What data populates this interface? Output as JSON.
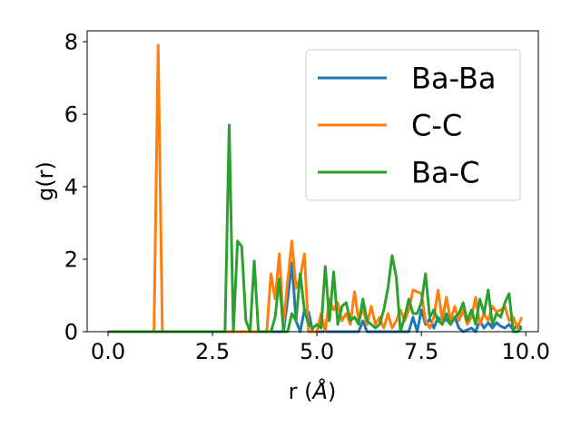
{
  "chart_data": {
    "type": "line",
    "xlabel": "r (Å)",
    "xlabel_parts": [
      "r (",
      "Å",
      ")"
    ],
    "ylabel": "g(r)",
    "xlim": [
      -0.5,
      10.3
    ],
    "ylim": [
      0,
      8.3
    ],
    "xticks": [
      0,
      2.5,
      5,
      7.5,
      10
    ],
    "xtick_labels": [
      "0.0",
      "2.5",
      "5.0",
      "7.5",
      "10.0"
    ],
    "yticks": [
      0,
      2,
      4,
      6,
      8
    ],
    "ytick_labels": [
      "0",
      "2",
      "4",
      "6",
      "8"
    ],
    "grid": false,
    "legend_position": "upper-right",
    "series": [
      {
        "name": "Ba-Ba",
        "color": "#1f77b4",
        "points": [
          [
            0,
            0
          ],
          [
            4.2,
            0
          ],
          [
            4.3,
            0.9
          ],
          [
            4.4,
            1.9
          ],
          [
            4.5,
            0.3
          ],
          [
            4.6,
            0
          ],
          [
            4.7,
            0.6
          ],
          [
            4.8,
            0.55
          ],
          [
            4.9,
            0
          ],
          [
            6.0,
            0
          ],
          [
            6.1,
            0.3
          ],
          [
            6.2,
            0
          ],
          [
            7.2,
            0
          ],
          [
            7.3,
            0.4
          ],
          [
            7.4,
            0
          ],
          [
            7.5,
            0.6
          ],
          [
            7.6,
            0.2
          ],
          [
            7.7,
            0.35
          ],
          [
            7.8,
            0.1
          ],
          [
            7.9,
            0.4
          ],
          [
            8.0,
            0.25
          ],
          [
            8.1,
            0.35
          ],
          [
            8.2,
            0.2
          ],
          [
            8.3,
            0.4
          ],
          [
            8.4,
            0.1
          ],
          [
            8.5,
            0
          ],
          [
            8.7,
            0.1
          ],
          [
            8.8,
            0
          ],
          [
            8.9,
            0.3
          ],
          [
            9.0,
            0.1
          ],
          [
            9.1,
            0.25
          ],
          [
            9.2,
            0.1
          ],
          [
            9.3,
            0.25
          ],
          [
            9.4,
            0.15
          ],
          [
            9.5,
            0.1
          ],
          [
            9.6,
            0.2
          ],
          [
            9.7,
            0.05
          ],
          [
            9.8,
            0.2
          ],
          [
            9.9,
            0.1
          ]
        ]
      },
      {
        "name": "C-C",
        "color": "#ff7f0e",
        "points": [
          [
            0,
            0
          ],
          [
            1.1,
            0
          ],
          [
            1.2,
            7.9
          ],
          [
            1.3,
            0
          ],
          [
            3.8,
            0
          ],
          [
            3.9,
            1.6
          ],
          [
            4.0,
            0.9
          ],
          [
            4.1,
            2.15
          ],
          [
            4.2,
            0.2
          ],
          [
            4.3,
            1.4
          ],
          [
            4.4,
            2.5
          ],
          [
            4.5,
            1.2
          ],
          [
            4.6,
            1.5
          ],
          [
            4.7,
            2.15
          ],
          [
            4.8,
            0
          ],
          [
            5.0,
            0
          ],
          [
            5.1,
            0.5
          ],
          [
            5.2,
            0
          ],
          [
            5.3,
            0.9
          ],
          [
            5.4,
            0.6
          ],
          [
            5.5,
            0.8
          ],
          [
            5.6,
            0.3
          ],
          [
            5.7,
            0.5
          ],
          [
            5.8,
            0.2
          ],
          [
            5.9,
            1.1
          ],
          [
            6.0,
            0.3
          ],
          [
            6.1,
            0.65
          ],
          [
            6.2,
            0.2
          ],
          [
            6.3,
            0.7
          ],
          [
            6.4,
            0.2
          ],
          [
            6.5,
            0.4
          ],
          [
            6.6,
            0.1
          ],
          [
            6.7,
            0.5
          ],
          [
            6.8,
            0.1
          ],
          [
            6.9,
            0.3
          ],
          [
            7.0,
            0.6
          ],
          [
            7.1,
            0.3
          ],
          [
            7.2,
            0.6
          ],
          [
            7.3,
            1.15
          ],
          [
            7.4,
            1.1
          ],
          [
            7.5,
            1.05
          ],
          [
            7.6,
            0.3
          ],
          [
            7.7,
            0.1
          ],
          [
            7.8,
            0.4
          ],
          [
            7.9,
            1.15
          ],
          [
            8.0,
            0.3
          ],
          [
            8.1,
            0.95
          ],
          [
            8.2,
            0.3
          ],
          [
            8.3,
            0.7
          ],
          [
            8.4,
            0.3
          ],
          [
            8.5,
            0.6
          ],
          [
            8.6,
            0.2
          ],
          [
            8.7,
            0.4
          ],
          [
            8.8,
            0.95
          ],
          [
            8.9,
            0.2
          ],
          [
            9.0,
            0.5
          ],
          [
            9.1,
            0.3
          ],
          [
            9.2,
            0.7
          ],
          [
            9.3,
            0.55
          ],
          [
            9.4,
            0.6
          ],
          [
            9.5,
            0.7
          ],
          [
            9.6,
            0.3
          ],
          [
            9.7,
            0.4
          ],
          [
            9.8,
            0.1
          ],
          [
            9.9,
            0.4
          ]
        ]
      },
      {
        "name": "Ba-C",
        "color": "#2ca02c",
        "points": [
          [
            0,
            0
          ],
          [
            2.8,
            0
          ],
          [
            2.9,
            5.7
          ],
          [
            3.0,
            0
          ],
          [
            3.1,
            2.5
          ],
          [
            3.2,
            2.35
          ],
          [
            3.3,
            0.3
          ],
          [
            3.4,
            0
          ],
          [
            3.5,
            1.95
          ],
          [
            3.6,
            0
          ],
          [
            3.9,
            0
          ],
          [
            4.0,
            0.4
          ],
          [
            4.1,
            1.45
          ],
          [
            4.2,
            0
          ],
          [
            4.3,
            0
          ],
          [
            4.4,
            0.5
          ],
          [
            4.5,
            0.3
          ],
          [
            4.6,
            1.6
          ],
          [
            4.7,
            0.6
          ],
          [
            4.8,
            0.2
          ],
          [
            4.9,
            0.1
          ],
          [
            5.0,
            0.2
          ],
          [
            5.1,
            0.1
          ],
          [
            5.2,
            1.8
          ],
          [
            5.3,
            0.3
          ],
          [
            5.4,
            1.65
          ],
          [
            5.5,
            0.2
          ],
          [
            5.6,
            0.7
          ],
          [
            5.7,
            0.8
          ],
          [
            5.8,
            0.3
          ],
          [
            5.9,
            0.4
          ],
          [
            6.0,
            0.2
          ],
          [
            6.1,
            0.9
          ],
          [
            6.2,
            0.3
          ],
          [
            6.3,
            0.2
          ],
          [
            6.4,
            0.1
          ],
          [
            6.5,
            0.2
          ],
          [
            6.6,
            0.6
          ],
          [
            6.7,
            1.2
          ],
          [
            6.8,
            2.1
          ],
          [
            6.9,
            1.5
          ],
          [
            7.0,
            0
          ],
          [
            7.1,
            0.4
          ],
          [
            7.2,
            0.9
          ],
          [
            7.3,
            0.5
          ],
          [
            7.4,
            0.5
          ],
          [
            7.5,
            0.8
          ],
          [
            7.6,
            1.6
          ],
          [
            7.7,
            0.4
          ],
          [
            7.8,
            0.6
          ],
          [
            7.9,
            0.3
          ],
          [
            8.0,
            0.2
          ],
          [
            8.1,
            0.5
          ],
          [
            8.2,
            0.2
          ],
          [
            8.3,
            0.4
          ],
          [
            8.4,
            0.5
          ],
          [
            8.5,
            0.8
          ],
          [
            8.6,
            0.3
          ],
          [
            8.7,
            0.6
          ],
          [
            8.8,
            0.2
          ],
          [
            8.9,
            0.9
          ],
          [
            9.0,
            0.5
          ],
          [
            9.1,
            1.15
          ],
          [
            9.2,
            0.2
          ],
          [
            9.3,
            0.5
          ],
          [
            9.4,
            0.4
          ],
          [
            9.5,
            0.8
          ],
          [
            9.6,
            1.05
          ],
          [
            9.7,
            0
          ],
          [
            9.8,
            0
          ],
          [
            9.9,
            0.1
          ]
        ]
      }
    ]
  }
}
